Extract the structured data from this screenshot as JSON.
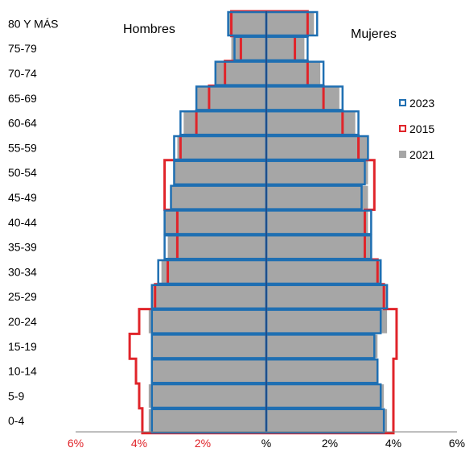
{
  "chart_data": {
    "type": "bar",
    "subtype": "population-pyramid",
    "left_label": "Hombres",
    "right_label": "Mujeres",
    "categories": [
      "0-4",
      "5-9",
      "10-14",
      "15-19",
      "20-24",
      "25-29",
      "30-34",
      "35-39",
      "40-44",
      "45-49",
      "50-54",
      "55-59",
      "60-64",
      "65-69",
      "70-74",
      "75-79",
      "80 Y MÁS"
    ],
    "xlim": [
      -6,
      6
    ],
    "x_tick_labels": [
      "6%",
      "4%",
      "2%",
      "%",
      "2%",
      "4%",
      "6%"
    ],
    "x_tick_values": [
      -6,
      -4,
      -2,
      0,
      2,
      4,
      6
    ],
    "x_tick_colors": [
      "#e0242a",
      "#e0242a",
      "#e0242a",
      "#000000",
      "#000000",
      "#000000",
      "#000000"
    ],
    "series": [
      {
        "name": "2021",
        "style": "filled",
        "color": "#a6a6a6",
        "hombres": [
          3.7,
          3.7,
          3.6,
          3.6,
          3.7,
          3.6,
          3.3,
          3.1,
          3.2,
          3.0,
          2.9,
          2.8,
          2.6,
          2.2,
          1.6,
          1.1,
          1.2
        ],
        "mujeres": [
          3.8,
          3.7,
          3.5,
          3.5,
          3.8,
          3.8,
          3.6,
          3.3,
          3.2,
          3.2,
          3.2,
          3.2,
          2.8,
          2.3,
          1.7,
          1.2,
          1.5
        ]
      },
      {
        "name": "2015",
        "style": "outline",
        "color": "#e0242a",
        "hombres": [
          3.9,
          4.0,
          4.1,
          4.3,
          4.0,
          3.5,
          3.1,
          2.8,
          2.8,
          3.2,
          3.2,
          2.7,
          2.2,
          1.8,
          1.3,
          0.8,
          1.1
        ],
        "mujeres": [
          4.0,
          4.0,
          4.0,
          4.1,
          4.1,
          3.7,
          3.5,
          3.1,
          3.1,
          3.4,
          3.4,
          2.9,
          2.4,
          1.8,
          1.3,
          0.9,
          1.3
        ]
      },
      {
        "name": "2023",
        "style": "outline",
        "color": "#1f6fb2",
        "hombres": [
          3.6,
          3.6,
          3.6,
          3.6,
          3.6,
          3.6,
          3.4,
          3.2,
          3.2,
          3.0,
          2.9,
          2.9,
          2.7,
          2.2,
          1.6,
          1.0,
          1.2
        ],
        "mujeres": [
          3.7,
          3.6,
          3.5,
          3.4,
          3.6,
          3.8,
          3.6,
          3.3,
          3.3,
          3.0,
          3.1,
          3.2,
          2.9,
          2.4,
          1.8,
          1.3,
          1.6
        ]
      }
    ],
    "legend": {
      "position": "right",
      "entries": [
        "2023",
        "2015",
        "2021"
      ]
    },
    "grid": false
  }
}
